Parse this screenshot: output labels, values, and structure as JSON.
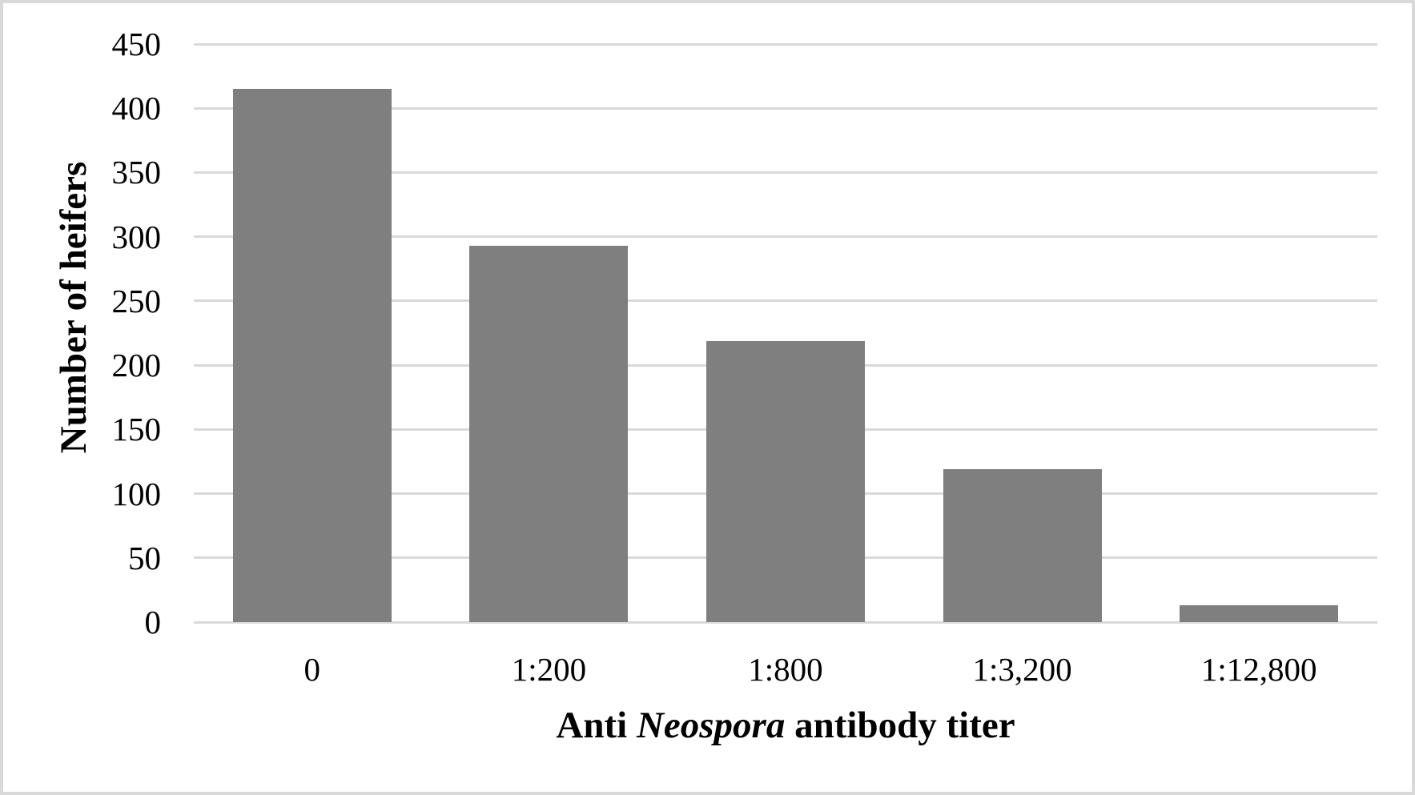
{
  "chart_data": {
    "type": "bar",
    "categories": [
      "0",
      "1:200",
      "1:800",
      "1:3,200",
      "1:12,800"
    ],
    "values": [
      415,
      293,
      219,
      119,
      13
    ],
    "xlabel": "Anti Neospora antibody titer",
    "xlabel_parts": [
      {
        "text": "Anti ",
        "italic": false
      },
      {
        "text": "Neospora",
        "italic": true
      },
      {
        "text": " antibody titer",
        "italic": false
      }
    ],
    "ylabel": "Number of heifers",
    "ylim": [
      0,
      450
    ],
    "ytick_step": 50,
    "yticks": [
      450,
      400,
      350,
      300,
      250,
      200,
      150,
      100,
      50,
      0
    ],
    "grid": "horizontal-on",
    "legend": "none",
    "bar_color": "#7F7F7F",
    "gridline_color": "#D9D9D9",
    "border_color": "#D9D9D9",
    "background_color": "#FFFFFF",
    "text_color": "#000000"
  }
}
